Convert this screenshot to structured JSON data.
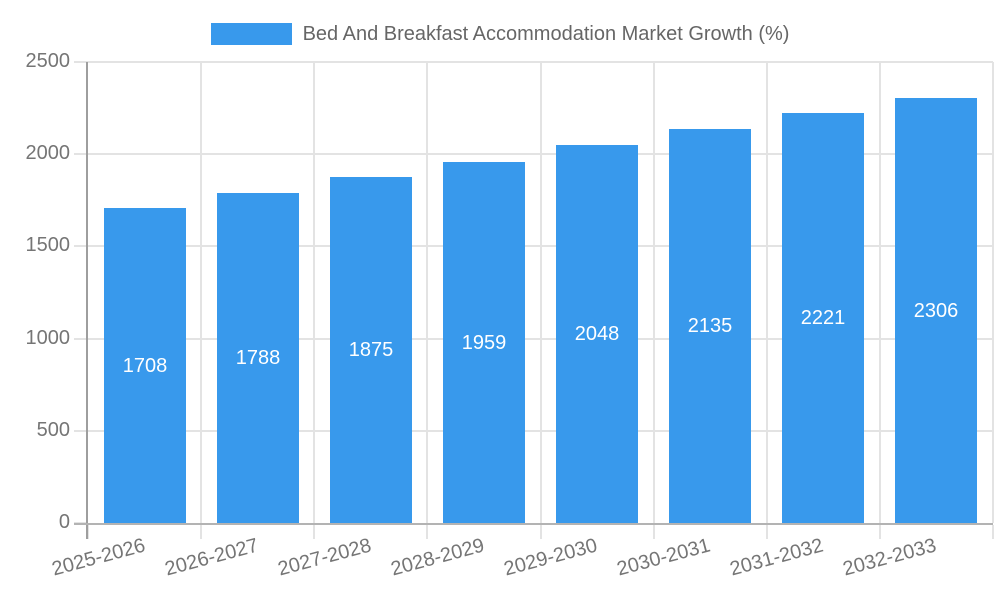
{
  "chart_data": {
    "type": "bar",
    "title": "Bed And Breakfast Accommodation Market Growth (%)",
    "categories": [
      "2025-2026",
      "2026-2027",
      "2027-2028",
      "2028-2029",
      "2029-2030",
      "2030-2031",
      "2031-2032",
      "2032-2033"
    ],
    "values": [
      1708,
      1788,
      1875,
      1959,
      2048,
      2135,
      2221,
      2306
    ],
    "xlabel": "",
    "ylabel": "",
    "ylim": [
      0,
      2500
    ],
    "yticks": [
      0,
      500,
      1000,
      1500,
      2000,
      2500
    ],
    "grid": true,
    "legend_position": "top",
    "bar_value_labels_visible": true,
    "colors": {
      "bar": "#3899EC",
      "bar_value_text": "#FFFFFF",
      "legend_title_text": "#666666",
      "axis_tick_text": "#757575",
      "gridline": "#E3E3E3",
      "y_axis_line": "#9E9E9E",
      "x_axis_line": "#B3B3B3",
      "background": "#FFFFFF"
    }
  }
}
